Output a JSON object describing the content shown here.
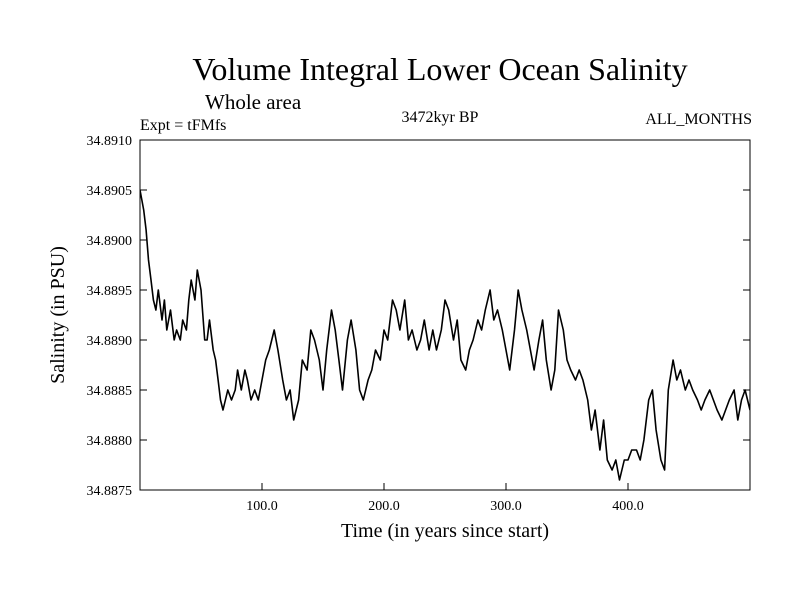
{
  "chart_data": {
    "type": "line",
    "title": "Volume Integral Lower Ocean Salinity",
    "subtitle": "Whole area",
    "experiment": "Expt = tFMfs",
    "period": "3472kyr BP",
    "months": "ALL_MONTHS",
    "xlabel": "Time (in years since start)",
    "ylabel": "Salinity (in PSU)",
    "xlim": [
      0,
      500
    ],
    "ylim": [
      34.8875,
      34.891
    ],
    "x_ticks": [
      100,
      200,
      300,
      400
    ],
    "x_tick_labels": [
      "100.0",
      "200.0",
      "300.0",
      "400.0"
    ],
    "y_ticks": [
      34.8875,
      34.888,
      34.8885,
      34.889,
      34.8895,
      34.89,
      34.8905,
      34.891
    ],
    "y_tick_labels": [
      "34.8875",
      "34.8880",
      "34.8885",
      "34.8890",
      "34.8895",
      "34.8900",
      "34.8905",
      "34.8910"
    ],
    "grid": false,
    "series": [
      {
        "name": "Salinity",
        "x": [
          0,
          3,
          5,
          7,
          9,
          11,
          13,
          15,
          18,
          20,
          22,
          25,
          28,
          30,
          33,
          35,
          38,
          40,
          42,
          45,
          47,
          50,
          53,
          55,
          57,
          60,
          62,
          64,
          66,
          68,
          70,
          72,
          75,
          78,
          80,
          83,
          86,
          88,
          91,
          94,
          97,
          100,
          103,
          106,
          110,
          113,
          117,
          120,
          123,
          126,
          130,
          133,
          137,
          140,
          143,
          147,
          150,
          153,
          157,
          160,
          163,
          166,
          170,
          173,
          177,
          180,
          183,
          187,
          190,
          193,
          197,
          200,
          203,
          207,
          210,
          213,
          217,
          220,
          223,
          227,
          230,
          233,
          237,
          240,
          243,
          247,
          250,
          253,
          257,
          260,
          263,
          267,
          270,
          273,
          277,
          280,
          283,
          287,
          290,
          293,
          297,
          300,
          303,
          307,
          310,
          313,
          317,
          320,
          323,
          327,
          330,
          333,
          337,
          340,
          343,
          347,
          350,
          353,
          357,
          360,
          363,
          367,
          370,
          373,
          377,
          380,
          383,
          387,
          390,
          393,
          397,
          400,
          403,
          407,
          410,
          413,
          417,
          420,
          423,
          427,
          430,
          433,
          437,
          440,
          443,
          447,
          450,
          453,
          457,
          460,
          463,
          467,
          470,
          473,
          477,
          480,
          483,
          487,
          490,
          493,
          496,
          500
        ],
        "values": [
          34.8905,
          34.8903,
          34.8901,
          34.8898,
          34.8896,
          34.8894,
          34.8893,
          34.8895,
          34.8892,
          34.8894,
          34.8891,
          34.8893,
          34.889,
          34.8891,
          34.889,
          34.8892,
          34.8891,
          34.8894,
          34.8896,
          34.8894,
          34.8897,
          34.8895,
          34.889,
          34.889,
          34.8892,
          34.8889,
          34.8888,
          34.8886,
          34.8884,
          34.8883,
          34.8884,
          34.8885,
          34.8884,
          34.8885,
          34.8887,
          34.8885,
          34.8887,
          34.8886,
          34.8884,
          34.8885,
          34.8884,
          34.8886,
          34.8888,
          34.8889,
          34.8891,
          34.8889,
          34.8886,
          34.8884,
          34.8885,
          34.8882,
          34.8884,
          34.8888,
          34.8887,
          34.8891,
          34.889,
          34.8888,
          34.8885,
          34.8889,
          34.8893,
          34.8891,
          34.8888,
          34.8885,
          34.889,
          34.8892,
          34.8889,
          34.8885,
          34.8884,
          34.8886,
          34.8887,
          34.8889,
          34.8888,
          34.8891,
          34.889,
          34.8894,
          34.8893,
          34.8891,
          34.8894,
          34.889,
          34.8891,
          34.8889,
          34.889,
          34.8892,
          34.8889,
          34.8891,
          34.8889,
          34.8891,
          34.8894,
          34.8893,
          34.889,
          34.8892,
          34.8888,
          34.8887,
          34.8889,
          34.889,
          34.8892,
          34.8891,
          34.8893,
          34.8895,
          34.8892,
          34.8893,
          34.8891,
          34.8889,
          34.8887,
          34.8891,
          34.8895,
          34.8893,
          34.8891,
          34.8889,
          34.8887,
          34.889,
          34.8892,
          34.8888,
          34.8885,
          34.8887,
          34.8893,
          34.8891,
          34.8888,
          34.8887,
          34.8886,
          34.8887,
          34.8886,
          34.8884,
          34.8881,
          34.8883,
          34.8879,
          34.8882,
          34.8878,
          34.8877,
          34.8878,
          34.8876,
          34.8878,
          34.8878,
          34.8879,
          34.8879,
          34.8878,
          34.888,
          34.8884,
          34.8885,
          34.8881,
          34.8878,
          34.8877,
          34.8885,
          34.8888,
          34.8886,
          34.8887,
          34.8885,
          34.8886,
          34.8885,
          34.8884,
          34.8883,
          34.8884,
          34.8885,
          34.8884,
          34.8883,
          34.8882,
          34.8883,
          34.8884,
          34.8885,
          34.8882,
          34.8884,
          34.8885,
          34.8883
        ]
      }
    ]
  }
}
